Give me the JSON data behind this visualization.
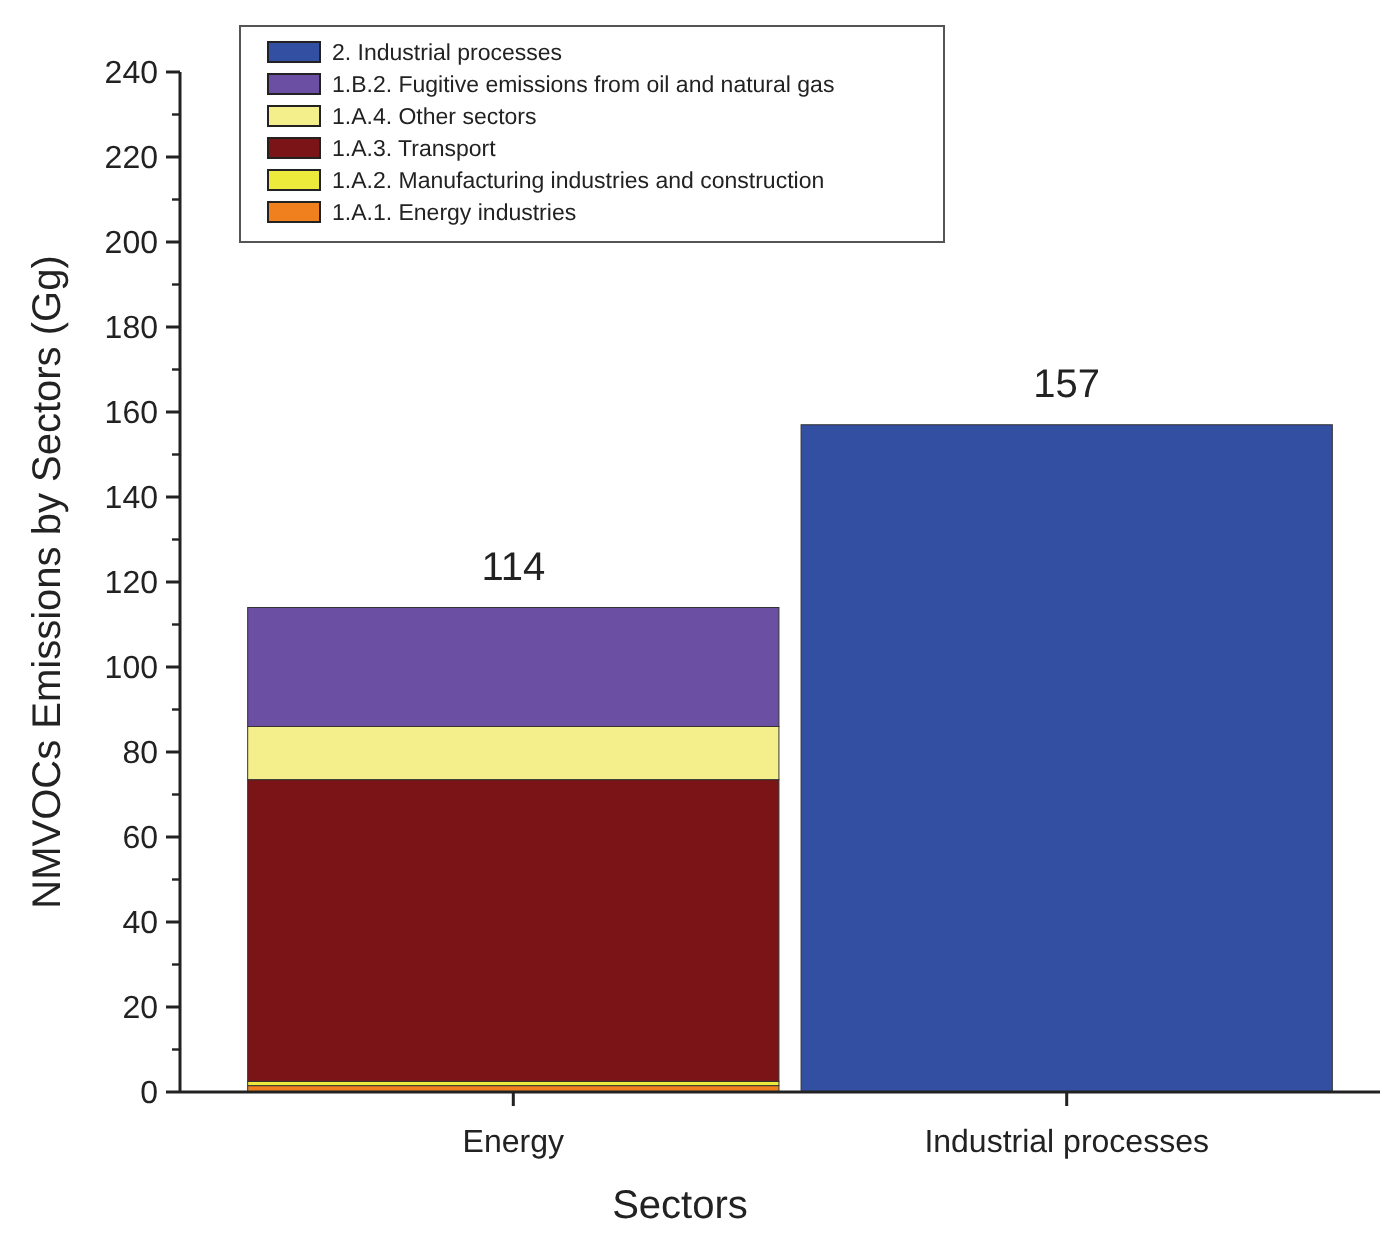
{
  "chart_data": {
    "type": "bar",
    "stacked": true,
    "xlabel": "Sectors",
    "ylabel": "NMVOCs Emissions by Sectors (Gg)",
    "categories": [
      "Energy",
      "Industrial processes"
    ],
    "series": [
      {
        "name": "1.A.1. Energy industries",
        "color": "#f07f1e",
        "values": [
          1.5,
          null
        ]
      },
      {
        "name": "1.A.2. Manufacturing industries and construction",
        "color": "#eeea3c",
        "values": [
          1,
          null
        ]
      },
      {
        "name": "1.A.3. Transport",
        "color": "#7a1416",
        "values": [
          71,
          null
        ]
      },
      {
        "name": "1.A.4. Other sectors",
        "color": "#f4ef8a",
        "values": [
          12.5,
          null
        ]
      },
      {
        "name": "1.B.2. Fugitive emissions from oil and natural gas",
        "color": "#6a4fa3",
        "values": [
          28,
          null
        ]
      },
      {
        "name": "2. Industrial processes",
        "color": "#324fa2",
        "values": [
          null,
          157
        ]
      }
    ],
    "totals": [
      "114",
      "157"
    ],
    "ylim": [
      0,
      240
    ],
    "yticks": [
      0,
      20,
      40,
      60,
      80,
      100,
      120,
      140,
      160,
      180,
      200,
      220,
      240
    ],
    "legend": "top left"
  }
}
